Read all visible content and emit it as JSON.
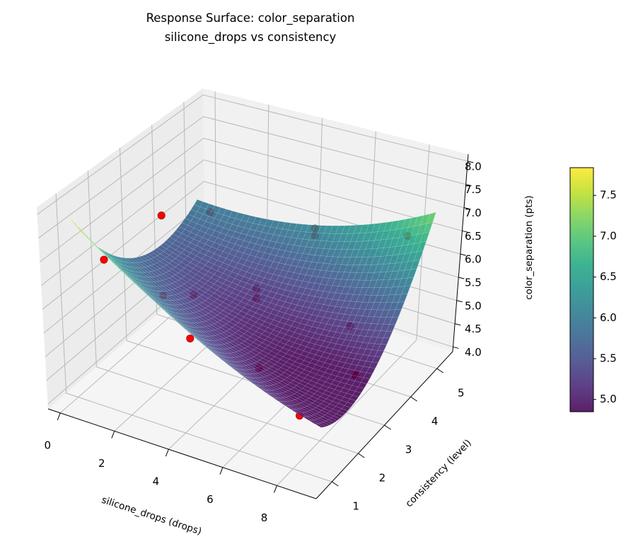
{
  "chart_data": {
    "type": "surface",
    "title": "Response Surface: color_separation",
    "subtitle": "silicone_drops vs consistency",
    "xlabel": "silicone_drops (drops)",
    "ylabel": "consistency (level)",
    "zlabel": "color_separation (pts)",
    "xlim": [
      -0.45,
      9.45
    ],
    "ylim": [
      0.4,
      5.6
    ],
    "zlim": [
      3.9,
      8.15
    ],
    "x_ticks": [
      "0",
      "2",
      "4",
      "6",
      "8"
    ],
    "y_ticks": [
      "1",
      "2",
      "3",
      "4",
      "5"
    ],
    "z_ticks": [
      "4.0",
      "4.5",
      "5.0",
      "5.5",
      "6.0",
      "6.5",
      "7.0",
      "7.5",
      "8.0"
    ],
    "colormap": "viridis",
    "surface": {
      "x_range": [
        0,
        9
      ],
      "y_range": [
        1,
        5
      ],
      "fit": {
        "intercept": 9.425,
        "x": -0.601,
        "y": -1.985,
        "x2": 0.02,
        "y2": 0.26,
        "xy": 0.11
      }
    },
    "points": [
      {
        "x": 1,
        "y": 3,
        "z": 6.9,
        "in_front": true
      },
      {
        "x": 0,
        "y": 2,
        "z": 6.3,
        "in_front": true
      },
      {
        "x": 2,
        "y": 3,
        "z": 4.4,
        "in_front": true
      },
      {
        "x": 0.5,
        "y": 5,
        "z": 5.8,
        "in_front": false
      },
      {
        "x": 4.5,
        "y": 5,
        "z": 6.1,
        "in_front": false
      },
      {
        "x": 4.5,
        "y": 5,
        "z": 5.95,
        "in_front": false
      },
      {
        "x": 8,
        "y": 5,
        "z": 6.5,
        "in_front": false
      },
      {
        "x": 1,
        "y": 3,
        "z": 5.15,
        "in_front": false
      },
      {
        "x": 1,
        "y": 4,
        "z": 4.6,
        "in_front": false
      },
      {
        "x": 4.5,
        "y": 3,
        "z": 5.9,
        "in_front": false
      },
      {
        "x": 4.5,
        "y": 3,
        "z": 5.7,
        "in_front": false
      },
      {
        "x": 8,
        "y": 3,
        "z": 5.7,
        "in_front": false
      },
      {
        "x": 8.75,
        "y": 2.5,
        "z": 5.1,
        "in_front": false
      },
      {
        "x": 6.7,
        "y": 1,
        "z": 5.7,
        "in_front": false
      },
      {
        "x": 8.2,
        "y": 1,
        "z": 5.0,
        "in_front": false
      }
    ],
    "point_color": "#ff0000",
    "colorbar": {
      "range": [
        4.85,
        7.84
      ],
      "ticks": [
        "5.0",
        "5.5",
        "6.0",
        "6.5",
        "7.0",
        "7.5"
      ]
    },
    "grid": true
  }
}
